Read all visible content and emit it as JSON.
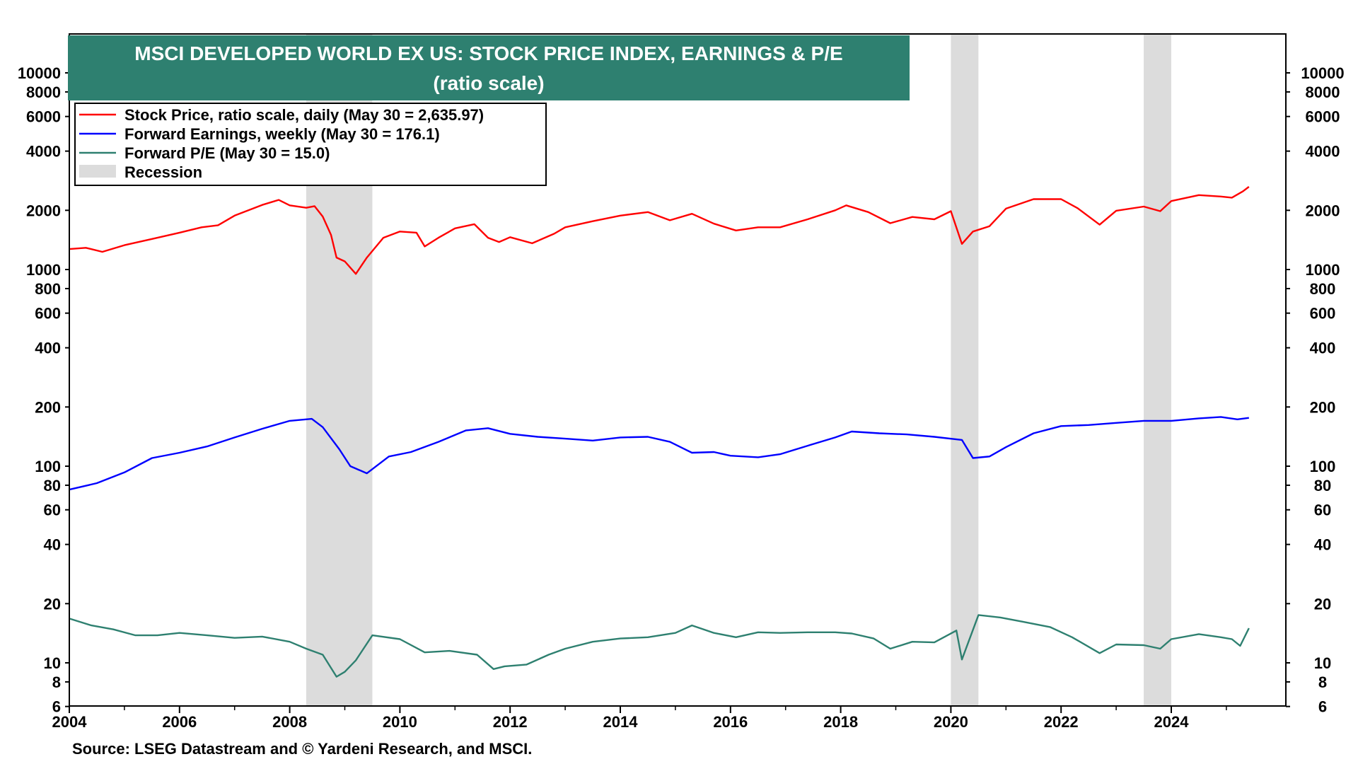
{
  "chart_data": {
    "type": "line",
    "title": "MSCI DEVELOPED WORLD EX US: STOCK PRICE INDEX, EARNINGS & P/E",
    "subtitle": "(ratio scale)",
    "source": "Source: LSEG Datastream and © Yardeni Research, and MSCI.",
    "y_scale": "log",
    "ylim": [
      6,
      16000
    ],
    "xlim": [
      2004.0,
      2025.7
    ],
    "grid": false,
    "legend_position": "top-left",
    "x_ticks": [
      "2004",
      "2006",
      "2008",
      "2010",
      "2012",
      "2014",
      "2016",
      "2018",
      "2020",
      "2022",
      "2024"
    ],
    "y_ticks": [
      {
        "value": 10000,
        "label": "10000"
      },
      {
        "value": 8000,
        "label": "8000"
      },
      {
        "value": 6000,
        "label": "6000"
      },
      {
        "value": 4000,
        "label": "4000"
      },
      {
        "value": 2000,
        "label": "2000"
      },
      {
        "value": 1000,
        "label": "1000"
      },
      {
        "value": 800,
        "label": "800"
      },
      {
        "value": 600,
        "label": "600"
      },
      {
        "value": 400,
        "label": "400"
      },
      {
        "value": 200,
        "label": "200"
      },
      {
        "value": 100,
        "label": "100"
      },
      {
        "value": 80,
        "label": "80"
      },
      {
        "value": 60,
        "label": "60"
      },
      {
        "value": 40,
        "label": "40"
      },
      {
        "value": 20,
        "label": "20"
      },
      {
        "value": 10,
        "label": "10"
      },
      {
        "value": 8,
        "label": "8"
      },
      {
        "value": 6,
        "label": "6"
      }
    ],
    "recessions": [
      {
        "start": 2008.3,
        "end": 2009.5
      },
      {
        "start": 2020.0,
        "end": 2020.5
      },
      {
        "start": 2023.5,
        "end": 2024.0
      }
    ],
    "legend": [
      {
        "label": "Stock Price, ratio scale, daily (May 30 = 2,635.97)",
        "color": "#ff0000",
        "kind": "line"
      },
      {
        "label": "Forward Earnings, weekly (May 30 = 176.1)",
        "color": "#0000ff",
        "kind": "line"
      },
      {
        "label": "Forward P/E (May 30 = 15.0)",
        "color": "#2e8070",
        "kind": "line"
      },
      {
        "label": "Recession",
        "color": "#dcdcdc",
        "kind": "box"
      }
    ],
    "series": [
      {
        "name": "Stock Price, ratio scale, daily (May 30 = 2,635.97)",
        "color": "#ff0000",
        "points": [
          [
            2004.0,
            1270
          ],
          [
            2004.3,
            1290
          ],
          [
            2004.6,
            1230
          ],
          [
            2005.0,
            1330
          ],
          [
            2005.5,
            1430
          ],
          [
            2006.0,
            1540
          ],
          [
            2006.4,
            1640
          ],
          [
            2006.7,
            1680
          ],
          [
            2007.0,
            1880
          ],
          [
            2007.5,
            2130
          ],
          [
            2007.8,
            2260
          ],
          [
            2008.0,
            2120
          ],
          [
            2008.3,
            2060
          ],
          [
            2008.45,
            2100
          ],
          [
            2008.6,
            1860
          ],
          [
            2008.75,
            1500
          ],
          [
            2008.85,
            1150
          ],
          [
            2009.0,
            1100
          ],
          [
            2009.2,
            950
          ],
          [
            2009.4,
            1150
          ],
          [
            2009.7,
            1450
          ],
          [
            2010.0,
            1560
          ],
          [
            2010.3,
            1540
          ],
          [
            2010.45,
            1310
          ],
          [
            2010.7,
            1450
          ],
          [
            2011.0,
            1620
          ],
          [
            2011.35,
            1700
          ],
          [
            2011.6,
            1450
          ],
          [
            2011.8,
            1380
          ],
          [
            2012.0,
            1460
          ],
          [
            2012.4,
            1360
          ],
          [
            2012.8,
            1520
          ],
          [
            2013.0,
            1640
          ],
          [
            2013.5,
            1760
          ],
          [
            2014.0,
            1880
          ],
          [
            2014.5,
            1960
          ],
          [
            2014.9,
            1780
          ],
          [
            2015.3,
            1920
          ],
          [
            2015.7,
            1710
          ],
          [
            2016.1,
            1580
          ],
          [
            2016.5,
            1640
          ],
          [
            2016.9,
            1640
          ],
          [
            2017.4,
            1800
          ],
          [
            2017.9,
            2000
          ],
          [
            2018.1,
            2120
          ],
          [
            2018.5,
            1960
          ],
          [
            2018.9,
            1720
          ],
          [
            2019.3,
            1850
          ],
          [
            2019.7,
            1800
          ],
          [
            2020.0,
            1980
          ],
          [
            2020.2,
            1350
          ],
          [
            2020.4,
            1560
          ],
          [
            2020.7,
            1660
          ],
          [
            2021.0,
            2040
          ],
          [
            2021.5,
            2280
          ],
          [
            2022.0,
            2280
          ],
          [
            2022.3,
            2050
          ],
          [
            2022.7,
            1690
          ],
          [
            2023.0,
            1990
          ],
          [
            2023.5,
            2090
          ],
          [
            2023.8,
            1980
          ],
          [
            2024.0,
            2230
          ],
          [
            2024.5,
            2390
          ],
          [
            2024.9,
            2350
          ],
          [
            2025.1,
            2320
          ],
          [
            2025.3,
            2500
          ],
          [
            2025.41,
            2636
          ]
        ]
      },
      {
        "name": "Forward Earnings, weekly (May 30 = 176.1)",
        "color": "#0000ff",
        "points": [
          [
            2004.0,
            76
          ],
          [
            2004.5,
            82
          ],
          [
            2005.0,
            93
          ],
          [
            2005.5,
            110
          ],
          [
            2006.0,
            117
          ],
          [
            2006.5,
            126
          ],
          [
            2007.0,
            140
          ],
          [
            2007.5,
            155
          ],
          [
            2008.0,
            170
          ],
          [
            2008.4,
            174
          ],
          [
            2008.6,
            158
          ],
          [
            2008.9,
            122
          ],
          [
            2009.1,
            100
          ],
          [
            2009.4,
            92
          ],
          [
            2009.8,
            112
          ],
          [
            2010.2,
            118
          ],
          [
            2010.7,
            133
          ],
          [
            2011.2,
            152
          ],
          [
            2011.6,
            156
          ],
          [
            2012.0,
            146
          ],
          [
            2012.5,
            141
          ],
          [
            2013.0,
            138
          ],
          [
            2013.5,
            135
          ],
          [
            2014.0,
            140
          ],
          [
            2014.5,
            141
          ],
          [
            2014.9,
            133
          ],
          [
            2015.3,
            117
          ],
          [
            2015.7,
            118
          ],
          [
            2016.0,
            113
          ],
          [
            2016.5,
            111
          ],
          [
            2016.9,
            115
          ],
          [
            2017.4,
            127
          ],
          [
            2017.9,
            140
          ],
          [
            2018.2,
            150
          ],
          [
            2018.7,
            147
          ],
          [
            2019.2,
            145
          ],
          [
            2019.7,
            141
          ],
          [
            2020.2,
            136
          ],
          [
            2020.4,
            110
          ],
          [
            2020.7,
            112
          ],
          [
            2021.0,
            125
          ],
          [
            2021.5,
            147
          ],
          [
            2022.0,
            160
          ],
          [
            2022.5,
            162
          ],
          [
            2023.0,
            166
          ],
          [
            2023.5,
            170
          ],
          [
            2024.0,
            170
          ],
          [
            2024.5,
            175
          ],
          [
            2024.9,
            178
          ],
          [
            2025.2,
            173
          ],
          [
            2025.41,
            176
          ]
        ]
      },
      {
        "name": "Forward P/E (May 30 = 15.0)",
        "color": "#2e8070",
        "points": [
          [
            2004.0,
            16.8
          ],
          [
            2004.4,
            15.5
          ],
          [
            2004.8,
            14.8
          ],
          [
            2005.2,
            13.8
          ],
          [
            2005.6,
            13.8
          ],
          [
            2006.0,
            14.2
          ],
          [
            2006.5,
            13.8
          ],
          [
            2007.0,
            13.4
          ],
          [
            2007.5,
            13.6
          ],
          [
            2008.0,
            12.8
          ],
          [
            2008.3,
            11.8
          ],
          [
            2008.6,
            11.0
          ],
          [
            2008.85,
            8.5
          ],
          [
            2009.0,
            9.0
          ],
          [
            2009.2,
            10.3
          ],
          [
            2009.5,
            13.8
          ],
          [
            2010.0,
            13.2
          ],
          [
            2010.45,
            11.3
          ],
          [
            2010.9,
            11.5
          ],
          [
            2011.4,
            11.0
          ],
          [
            2011.7,
            9.3
          ],
          [
            2011.9,
            9.6
          ],
          [
            2012.3,
            9.8
          ],
          [
            2012.7,
            11.0
          ],
          [
            2013.0,
            11.8
          ],
          [
            2013.5,
            12.8
          ],
          [
            2014.0,
            13.3
          ],
          [
            2014.5,
            13.5
          ],
          [
            2015.0,
            14.2
          ],
          [
            2015.3,
            15.5
          ],
          [
            2015.7,
            14.2
          ],
          [
            2016.1,
            13.5
          ],
          [
            2016.5,
            14.3
          ],
          [
            2016.9,
            14.2
          ],
          [
            2017.4,
            14.3
          ],
          [
            2017.9,
            14.3
          ],
          [
            2018.2,
            14.1
          ],
          [
            2018.6,
            13.3
          ],
          [
            2018.9,
            11.8
          ],
          [
            2019.3,
            12.8
          ],
          [
            2019.7,
            12.7
          ],
          [
            2020.1,
            14.6
          ],
          [
            2020.2,
            10.4
          ],
          [
            2020.5,
            17.5
          ],
          [
            2020.9,
            17.0
          ],
          [
            2021.3,
            16.2
          ],
          [
            2021.8,
            15.2
          ],
          [
            2022.2,
            13.5
          ],
          [
            2022.7,
            11.2
          ],
          [
            2023.0,
            12.4
          ],
          [
            2023.5,
            12.3
          ],
          [
            2023.8,
            11.8
          ],
          [
            2024.0,
            13.2
          ],
          [
            2024.5,
            14.0
          ],
          [
            2024.9,
            13.5
          ],
          [
            2025.1,
            13.2
          ],
          [
            2025.25,
            12.2
          ],
          [
            2025.41,
            15.0
          ]
        ]
      }
    ]
  }
}
